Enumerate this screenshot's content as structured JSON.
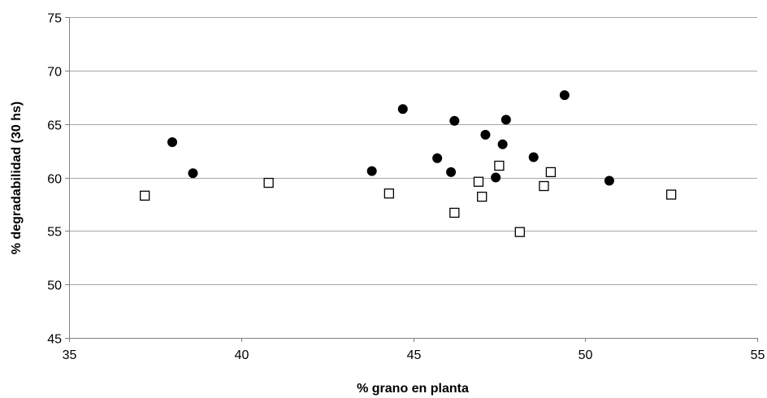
{
  "chart_data": {
    "type": "scatter",
    "title": "",
    "xlabel": "% grano en planta",
    "ylabel": "% degradabilidad (30 hs)",
    "xlim": [
      35,
      55
    ],
    "ylim": [
      45,
      75
    ],
    "xticks": [
      35,
      40,
      45,
      50,
      55
    ],
    "yticks": [
      45,
      50,
      55,
      60,
      65,
      70,
      75
    ],
    "grid": "horizontal",
    "legend": "none",
    "series": [
      {
        "marker": "filled-circle",
        "color": "#000000",
        "points": [
          [
            38.0,
            63.3
          ],
          [
            38.6,
            60.4
          ],
          [
            43.8,
            60.6
          ],
          [
            44.7,
            66.4
          ],
          [
            45.7,
            61.8
          ],
          [
            46.1,
            60.5
          ],
          [
            46.2,
            65.3
          ],
          [
            47.1,
            64.0
          ],
          [
            47.4,
            60.0
          ],
          [
            47.6,
            63.1
          ],
          [
            47.7,
            65.4
          ],
          [
            48.5,
            61.9
          ],
          [
            49.4,
            67.7
          ],
          [
            50.7,
            59.7
          ]
        ]
      },
      {
        "marker": "open-square",
        "color": "#000000",
        "points": [
          [
            37.2,
            58.3
          ],
          [
            40.8,
            59.5
          ],
          [
            44.3,
            58.5
          ],
          [
            46.2,
            56.7
          ],
          [
            46.9,
            59.6
          ],
          [
            47.0,
            58.2
          ],
          [
            47.5,
            61.1
          ],
          [
            48.1,
            54.9
          ],
          [
            48.8,
            59.2
          ],
          [
            49.0,
            60.5
          ],
          [
            52.5,
            58.4
          ]
        ]
      }
    ]
  }
}
